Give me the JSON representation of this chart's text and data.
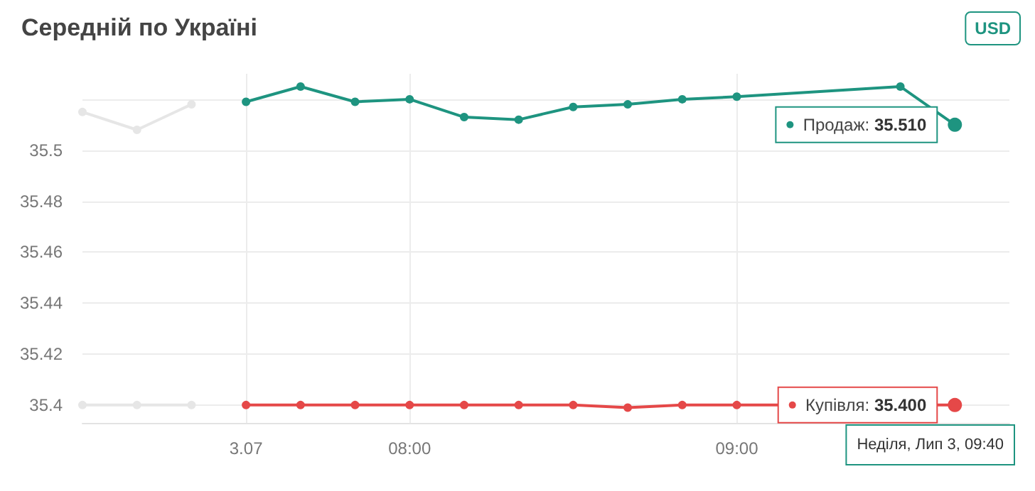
{
  "chart_data": {
    "type": "line",
    "title": "Середній по Україні",
    "annotations": [
      "USD",
      "Неділя, Лип 3, 09:40"
    ],
    "categories": [
      null,
      null,
      null,
      "3.07",
      null,
      null,
      "08:00",
      null,
      null,
      null,
      null,
      null,
      "09:00",
      null,
      null,
      null,
      null,
      null
    ],
    "series": [
      {
        "color": "#e6e6e6",
        "values": [
          35.515,
          35.508,
          35.518,
          null,
          null,
          null,
          null,
          null,
          null,
          null,
          null,
          null,
          null,
          null,
          null,
          null,
          null,
          null
        ]
      },
      {
        "color": "#e6e6e6",
        "values": [
          35.4,
          35.4,
          35.4,
          null,
          null,
          null,
          null,
          null,
          null,
          null,
          null,
          null,
          null,
          null,
          null,
          null,
          null,
          null
        ]
      },
      {
        "name": "Продаж:",
        "color": "#1e9480",
        "values": [
          null,
          null,
          null,
          35.519,
          35.525,
          35.519,
          35.52,
          35.513,
          35.512,
          35.517,
          35.518,
          35.52,
          35.521,
          null,
          null,
          35.525,
          35.51,
          null
        ],
        "value_labels": [
          null,
          null,
          null,
          null,
          null,
          null,
          null,
          null,
          null,
          null,
          null,
          null,
          null,
          null,
          null,
          null,
          "35.510",
          null
        ]
      },
      {
        "name": "Купівля:",
        "color": "#e54848",
        "values": [
          null,
          null,
          null,
          35.4,
          35.4,
          35.4,
          35.4,
          35.4,
          35.4,
          35.4,
          35.399,
          35.4,
          35.4,
          null,
          null,
          null,
          35.4,
          null
        ],
        "value_labels": [
          null,
          null,
          null,
          null,
          null,
          null,
          null,
          null,
          null,
          null,
          null,
          null,
          null,
          null,
          null,
          null,
          "35.400",
          null
        ]
      }
    ],
    "ylim": [
      35.393,
      35.53
    ],
    "yticks": [
      35.4,
      35.42,
      35.44,
      35.46,
      35.48,
      35.5,
      {
        "value": 35.52,
        "label": null
      }
    ],
    "grid": true,
    "legend": "right",
    "marker": "circle",
    "line_style": "solid"
  }
}
